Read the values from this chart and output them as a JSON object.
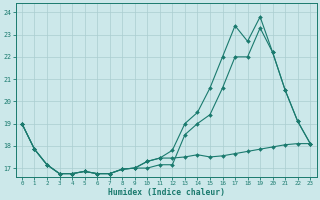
{
  "xlabel": "Humidex (Indice chaleur)",
  "xlim": [
    -0.5,
    23.5
  ],
  "ylim": [
    16.6,
    24.4
  ],
  "yticks": [
    17,
    18,
    19,
    20,
    21,
    22,
    23,
    24
  ],
  "xticks": [
    0,
    1,
    2,
    3,
    4,
    5,
    6,
    7,
    8,
    9,
    10,
    11,
    12,
    13,
    14,
    15,
    16,
    17,
    18,
    19,
    20,
    21,
    22,
    23
  ],
  "bg_color": "#cce8ea",
  "grid_color": "#aacdd0",
  "line_color": "#1a7a6e",
  "line_top_x": [
    0,
    1,
    2,
    3,
    4,
    5,
    6,
    7,
    8,
    9,
    10,
    11,
    12,
    13,
    14,
    15,
    16,
    17,
    18,
    19,
    20,
    21,
    22,
    23
  ],
  "line_top_y": [
    19.0,
    17.85,
    17.15,
    16.75,
    16.75,
    16.85,
    16.75,
    16.75,
    16.95,
    17.0,
    17.3,
    17.45,
    17.8,
    19.0,
    19.5,
    20.6,
    22.0,
    23.4,
    22.7,
    23.8,
    22.2,
    20.5,
    19.1,
    18.1
  ],
  "line_mid_x": [
    0,
    1,
    2,
    3,
    4,
    5,
    6,
    7,
    8,
    9,
    10,
    11,
    12,
    13,
    14,
    15,
    16,
    17,
    18,
    19,
    20,
    21,
    22,
    23
  ],
  "line_mid_y": [
    19.0,
    17.85,
    17.15,
    16.75,
    16.75,
    16.85,
    16.75,
    16.75,
    16.95,
    17.0,
    17.0,
    17.15,
    17.15,
    18.5,
    19.0,
    19.4,
    20.6,
    22.0,
    22.0,
    23.3,
    22.2,
    20.5,
    19.1,
    18.1
  ],
  "line_bot_x": [
    0,
    1,
    2,
    3,
    4,
    5,
    6,
    7,
    8,
    9,
    10,
    11,
    12,
    13,
    14,
    15,
    16,
    17,
    18,
    19,
    20,
    21,
    22,
    23
  ],
  "line_bot_y": [
    19.0,
    17.85,
    17.15,
    16.75,
    16.75,
    16.85,
    16.75,
    16.75,
    16.95,
    17.0,
    17.3,
    17.45,
    17.45,
    17.5,
    17.6,
    17.5,
    17.55,
    17.65,
    17.75,
    17.85,
    17.95,
    18.05,
    18.1,
    18.1
  ]
}
